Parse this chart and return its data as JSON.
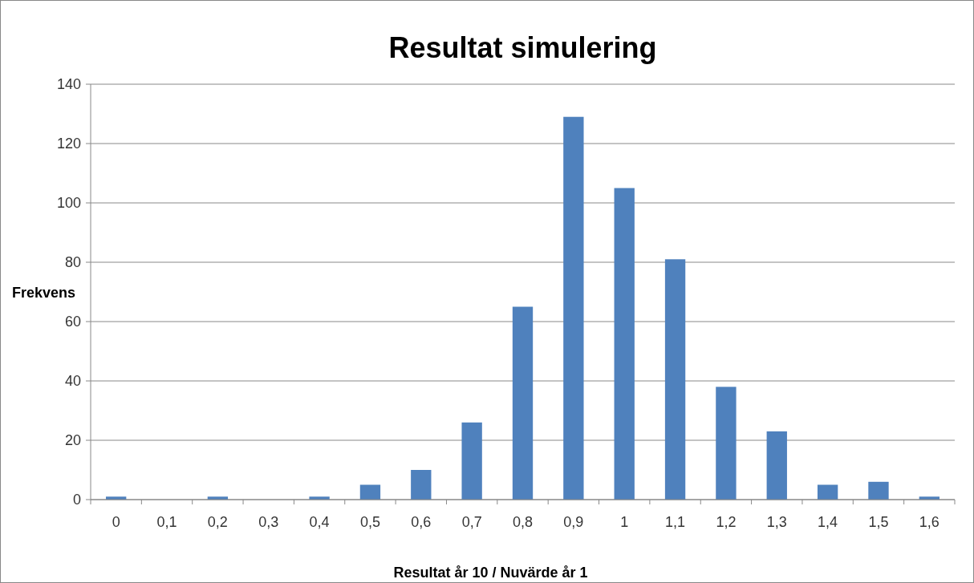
{
  "chart_data": {
    "type": "bar",
    "title": "Resultat simulering",
    "xlabel": "Resultat år 10 / Nuvärde år 1",
    "ylabel": "Frekvens",
    "categories": [
      "0",
      "0,1",
      "0,2",
      "0,3",
      "0,4",
      "0,5",
      "0,6",
      "0,7",
      "0,8",
      "0,9",
      "1",
      "1,1",
      "1,2",
      "1,3",
      "1,4",
      "1,5",
      "1,6"
    ],
    "values": [
      1,
      0,
      1,
      0,
      1,
      5,
      10,
      26,
      65,
      129,
      105,
      81,
      38,
      23,
      5,
      6,
      1
    ],
    "color": "#4f81bd",
    "ylim": [
      0,
      140
    ],
    "yticks": [
      0,
      20,
      40,
      60,
      80,
      100,
      120,
      140
    ],
    "grid": "y"
  }
}
